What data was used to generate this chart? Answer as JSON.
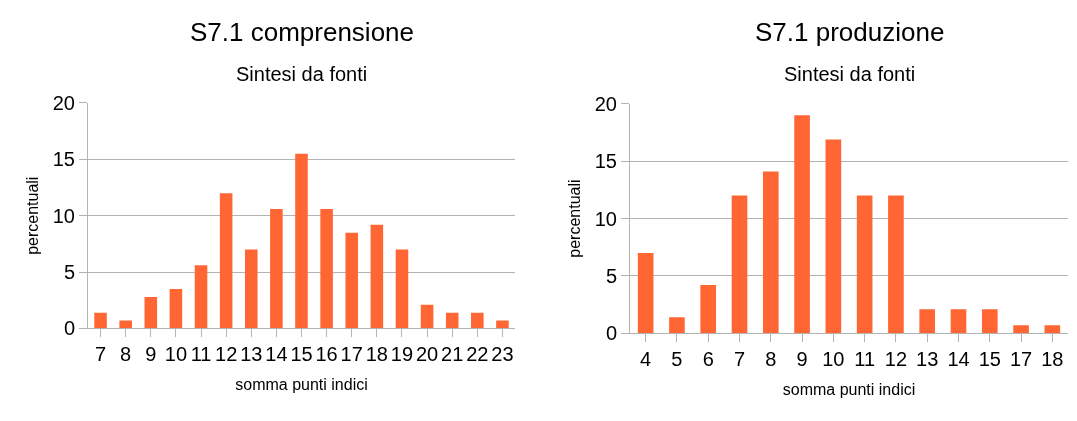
{
  "chart_data": [
    {
      "type": "bar",
      "title": "S7.1 comprensione",
      "subtitle": "Sintesi da fonti",
      "xlabel": "somma punti indici",
      "ylabel": "percentuali",
      "categories": [
        "7",
        "8",
        "9",
        "10",
        "11",
        "12",
        "13",
        "14",
        "15",
        "16",
        "17",
        "18",
        "19",
        "20",
        "21",
        "22",
        "23"
      ],
      "values": [
        1.4,
        0.7,
        2.8,
        3.5,
        5.6,
        12.0,
        7.0,
        10.6,
        15.5,
        10.6,
        8.5,
        9.2,
        7.0,
        2.1,
        1.4,
        1.4,
        0.7
      ],
      "color": "#ff6633",
      "ylim": [
        0,
        20
      ],
      "yticks": [
        0,
        5,
        10,
        15,
        20
      ],
      "grid": "y"
    },
    {
      "type": "bar",
      "title": "S7.1 produzione",
      "subtitle": "Sintesi da fonti",
      "xlabel": "somma punti indici",
      "ylabel": "percentuali",
      "categories": [
        "4",
        "5",
        "6",
        "7",
        "8",
        "9",
        "10",
        "11",
        "12",
        "13",
        "14",
        "15",
        "17",
        "18"
      ],
      "values": [
        7.0,
        1.4,
        4.2,
        12.0,
        14.1,
        19.0,
        16.9,
        12.0,
        12.0,
        2.1,
        2.1,
        2.1,
        0.7,
        0.7
      ],
      "color": "#ff6633",
      "ylim": [
        0,
        20
      ],
      "yticks": [
        0,
        5,
        10,
        15,
        20
      ],
      "grid": "y"
    }
  ]
}
